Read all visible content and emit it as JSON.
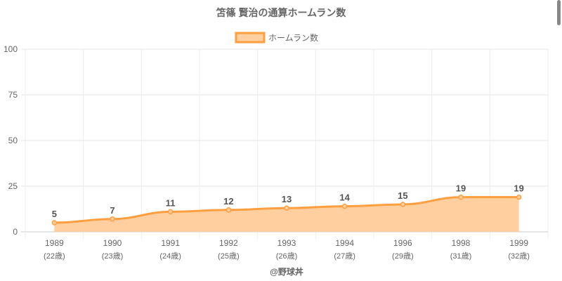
{
  "chart_data": {
    "type": "area",
    "title": "笘篠 賢治の通算ホームラン数",
    "categories": [
      "1989",
      "1990",
      "1991",
      "1992",
      "1993",
      "1994",
      "1996",
      "1998",
      "1999"
    ],
    "sublabels": [
      "(22歳)",
      "(23歳)",
      "(24歳)",
      "(25歳)",
      "(26歳)",
      "(27歳)",
      "(29歳)",
      "(31歳)",
      "(32歳)"
    ],
    "series": [
      {
        "name": "ホームラン数",
        "values": [
          5,
          7,
          11,
          12,
          13,
          14,
          15,
          19,
          19
        ]
      }
    ],
    "ylim": [
      0,
      100
    ],
    "yticks": [
      0,
      25,
      50,
      75,
      100
    ],
    "grid": true,
    "legend": "top",
    "line_color": "#ff9f40",
    "fill_color": "#ffcf9f"
  },
  "credit": "@野球丼"
}
